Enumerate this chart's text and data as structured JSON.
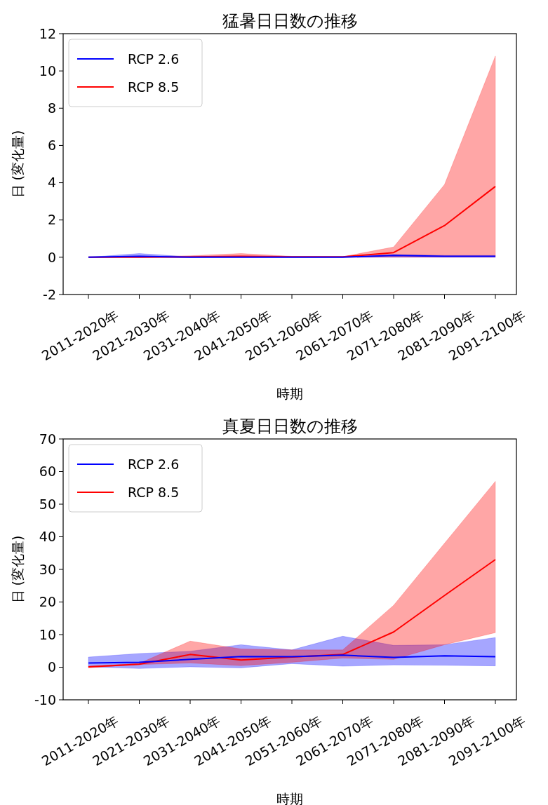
{
  "chart_data": [
    {
      "type": "line",
      "title": "猛暑日日数の推移",
      "xlabel": "時期",
      "ylabel": "日 (変化量)",
      "categories": [
        "2011-2020年",
        "2021-2030年",
        "2031-2040年",
        "2041-2050年",
        "2051-2060年",
        "2061-2070年",
        "2071-2080年",
        "2081-2090年",
        "2091-2100年"
      ],
      "ylim": [
        -2,
        12
      ],
      "yticks": [
        -2,
        0,
        2,
        4,
        6,
        8,
        10,
        12
      ],
      "legend": "top left",
      "series": [
        {
          "name": "RCP 2.6",
          "color": "#0000ff",
          "values": [
            0,
            0.05,
            0,
            0,
            0,
            0,
            0.1,
            0.05,
            0.05
          ],
          "lower": [
            0,
            0,
            0,
            0,
            0,
            0,
            0,
            0,
            0
          ],
          "upper": [
            0,
            0.2,
            0.02,
            0.02,
            0.02,
            0.02,
            0.15,
            0.1,
            0.1
          ]
        },
        {
          "name": "RCP 8.5",
          "color": "#ff0000",
          "values": [
            0,
            0,
            0.02,
            0.05,
            0.02,
            0.02,
            0.25,
            1.7,
            3.8
          ],
          "lower": [
            0,
            0,
            0,
            0,
            0,
            0,
            0,
            0,
            0
          ],
          "upper": [
            0,
            0.02,
            0.08,
            0.2,
            0.05,
            0.03,
            0.55,
            3.9,
            10.8
          ]
        }
      ]
    },
    {
      "type": "line",
      "title": "真夏日日数の推移",
      "xlabel": "時期",
      "ylabel": "日 (変化量)",
      "categories": [
        "2011-2020年",
        "2021-2030年",
        "2031-2040年",
        "2041-2050年",
        "2051-2060年",
        "2061-2070年",
        "2071-2080年",
        "2081-2090年",
        "2091-2100年"
      ],
      "ylim": [
        -10,
        70
      ],
      "yticks": [
        -10,
        0,
        10,
        20,
        30,
        40,
        50,
        60,
        70
      ],
      "legend": "top left",
      "series": [
        {
          "name": "RCP 2.6",
          "color": "#0000ff",
          "values": [
            1.3,
            1.5,
            2.4,
            3.3,
            3.2,
            3.7,
            3.0,
            3.5,
            3.2
          ],
          "lower": [
            0.1,
            -0.4,
            0.1,
            -0.2,
            1.1,
            0.3,
            0.7,
            0.6,
            0.4
          ],
          "upper": [
            3.1,
            4.2,
            4.9,
            6.9,
            5.3,
            9.5,
            6.7,
            6.9,
            9.1
          ]
        },
        {
          "name": "RCP 8.5",
          "color": "#ff0000",
          "values": [
            0.1,
            0.9,
            3.9,
            2.2,
            3.1,
            3.9,
            10.8,
            22,
            33
          ],
          "lower": [
            -0.2,
            0.8,
            1.3,
            0.5,
            1.5,
            2.8,
            2.4,
            6.9,
            10.6
          ],
          "upper": [
            0.3,
            1.2,
            8.0,
            5.6,
            5.3,
            5.3,
            19,
            38,
            57
          ]
        }
      ]
    }
  ]
}
